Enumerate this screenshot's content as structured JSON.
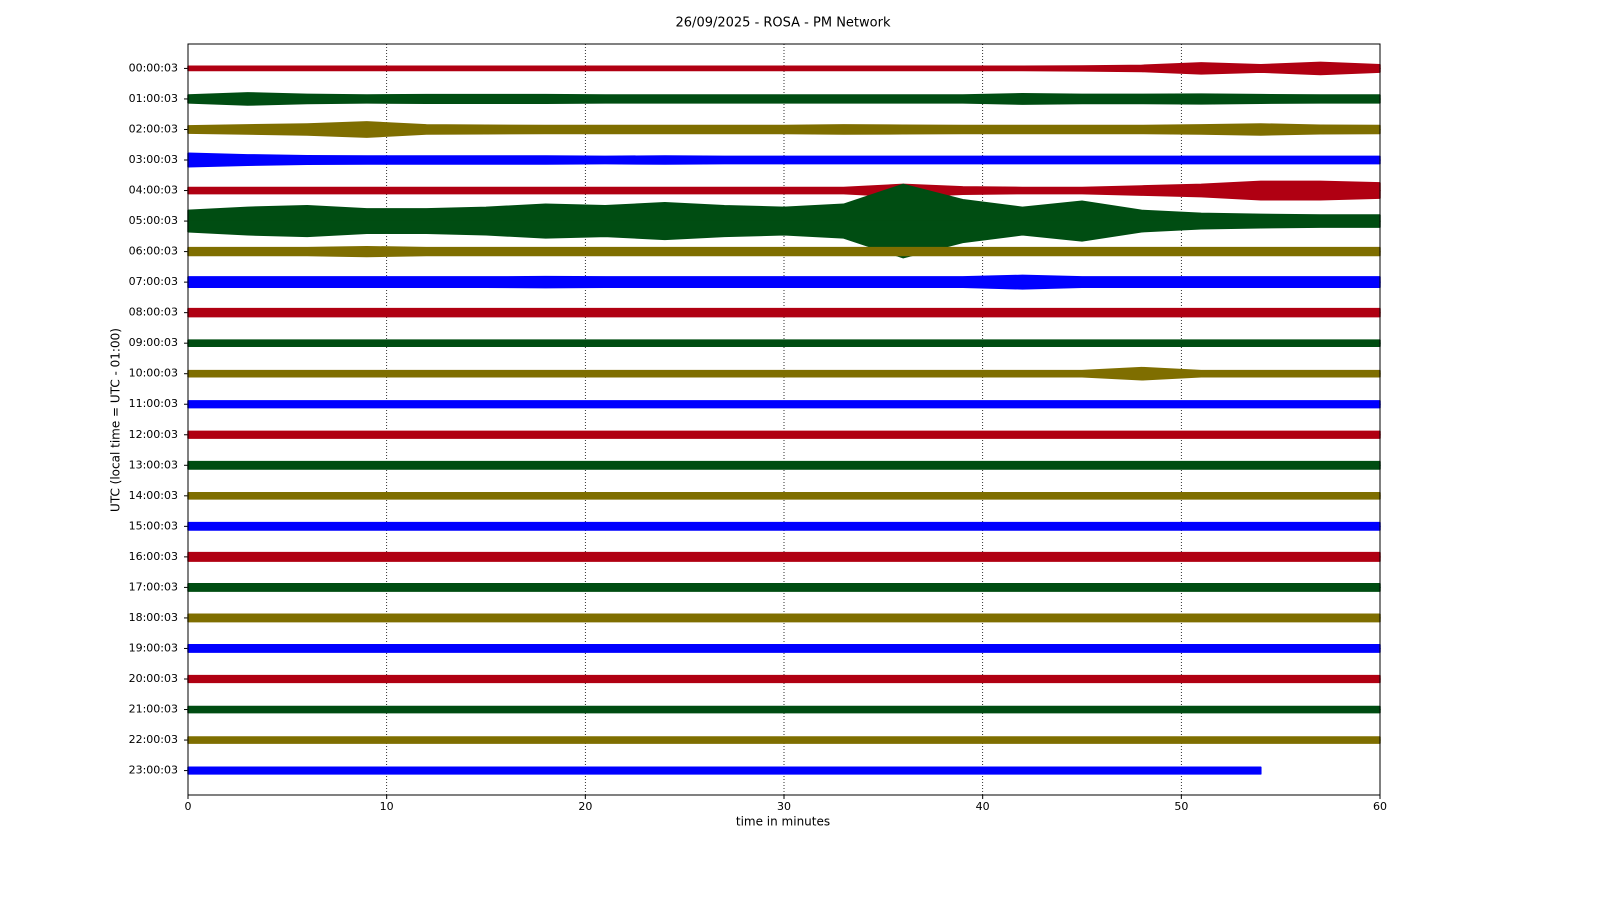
{
  "chart_data": {
    "type": "helicorder",
    "title": "26/09/2025 - ROSA - PM Network",
    "xlabel": "time in minutes",
    "ylabel": "UTC (local time = UTC - 01:00)",
    "xlim": [
      0,
      60
    ],
    "xticks": [
      0,
      10,
      20,
      30,
      40,
      50,
      60
    ],
    "grid": true,
    "categories": [
      "00:00:03",
      "01:00:03",
      "02:00:03",
      "03:00:03",
      "04:00:03",
      "05:00:03",
      "06:00:03",
      "07:00:03",
      "08:00:03",
      "09:00:03",
      "10:00:03",
      "11:00:03",
      "12:00:03",
      "13:00:03",
      "14:00:03",
      "15:00:03",
      "16:00:03",
      "17:00:03",
      "18:00:03",
      "19:00:03",
      "20:00:03",
      "21:00:03",
      "22:00:03",
      "23:00:03"
    ],
    "x": [
      0,
      3,
      6,
      9,
      12,
      15,
      18,
      21,
      24,
      27,
      30,
      33,
      36,
      39,
      42,
      45,
      48,
      51,
      54,
      57,
      60
    ],
    "series": [
      {
        "color": "#b00012",
        "values": [
          0.07,
          0.07,
          0.07,
          0.07,
          0.07,
          0.07,
          0.07,
          0.07,
          0.07,
          0.07,
          0.07,
          0.07,
          0.07,
          0.07,
          0.07,
          0.08,
          0.1,
          0.18,
          0.12,
          0.2,
          0.12
        ]
      },
      {
        "color": "#004d12",
        "values": [
          0.13,
          0.2,
          0.15,
          0.13,
          0.14,
          0.14,
          0.14,
          0.13,
          0.13,
          0.13,
          0.13,
          0.13,
          0.13,
          0.13,
          0.17,
          0.15,
          0.15,
          0.16,
          0.14,
          0.13,
          0.13
        ]
      },
      {
        "color": "#7f6e00",
        "values": [
          0.12,
          0.15,
          0.18,
          0.25,
          0.15,
          0.14,
          0.13,
          0.13,
          0.13,
          0.13,
          0.13,
          0.15,
          0.14,
          0.13,
          0.13,
          0.13,
          0.13,
          0.15,
          0.18,
          0.14,
          0.13
        ]
      },
      {
        "color": "#0000ff",
        "values": [
          0.22,
          0.17,
          0.14,
          0.13,
          0.13,
          0.13,
          0.13,
          0.12,
          0.13,
          0.12,
          0.12,
          0.12,
          0.12,
          0.12,
          0.12,
          0.12,
          0.12,
          0.12,
          0.12,
          0.12,
          0.12
        ]
      },
      {
        "color": "#b00012",
        "values": [
          0.1,
          0.1,
          0.1,
          0.1,
          0.1,
          0.1,
          0.1,
          0.1,
          0.1,
          0.1,
          0.1,
          0.1,
          0.2,
          0.12,
          0.1,
          0.1,
          0.15,
          0.2,
          0.3,
          0.3,
          0.25
        ]
      },
      {
        "color": "#004d12",
        "values": [
          0.35,
          0.45,
          0.5,
          0.4,
          0.4,
          0.45,
          0.55,
          0.5,
          0.6,
          0.5,
          0.45,
          0.55,
          1.2,
          0.7,
          0.45,
          0.65,
          0.35,
          0.25,
          0.22,
          0.2,
          0.2
        ]
      },
      {
        "color": "#7f6e00",
        "values": [
          0.13,
          0.13,
          0.13,
          0.16,
          0.13,
          0.13,
          0.13,
          0.13,
          0.13,
          0.13,
          0.13,
          0.13,
          0.13,
          0.13,
          0.13,
          0.13,
          0.13,
          0.13,
          0.13,
          0.13,
          0.13
        ]
      },
      {
        "color": "#0000ff",
        "values": [
          0.17,
          0.17,
          0.17,
          0.17,
          0.17,
          0.17,
          0.18,
          0.17,
          0.17,
          0.17,
          0.17,
          0.17,
          0.17,
          0.17,
          0.22,
          0.17,
          0.17,
          0.17,
          0.17,
          0.17,
          0.17
        ]
      },
      {
        "color": "#b00012",
        "values": [
          0.13,
          0.13,
          0.13,
          0.13,
          0.13,
          0.13,
          0.13,
          0.13,
          0.13,
          0.13,
          0.13,
          0.13,
          0.13,
          0.13,
          0.13,
          0.13,
          0.13,
          0.13,
          0.13,
          0.13,
          0.13
        ]
      },
      {
        "color": "#004d12",
        "values": [
          0.1,
          0.1,
          0.1,
          0.1,
          0.1,
          0.1,
          0.1,
          0.1,
          0.1,
          0.1,
          0.1,
          0.1,
          0.1,
          0.1,
          0.1,
          0.1,
          0.1,
          0.1,
          0.1,
          0.1,
          0.1
        ]
      },
      {
        "color": "#7f6e00",
        "values": [
          0.1,
          0.1,
          0.1,
          0.1,
          0.1,
          0.1,
          0.1,
          0.1,
          0.1,
          0.1,
          0.1,
          0.1,
          0.1,
          0.1,
          0.1,
          0.1,
          0.2,
          0.1,
          0.1,
          0.1,
          0.1
        ]
      },
      {
        "color": "#0000ff",
        "values": [
          0.11,
          0.11,
          0.11,
          0.11,
          0.11,
          0.11,
          0.11,
          0.11,
          0.11,
          0.11,
          0.11,
          0.11,
          0.11,
          0.11,
          0.11,
          0.11,
          0.11,
          0.11,
          0.11,
          0.11,
          0.11
        ]
      },
      {
        "color": "#b00012",
        "values": [
          0.11,
          0.11,
          0.11,
          0.11,
          0.11,
          0.11,
          0.11,
          0.11,
          0.11,
          0.11,
          0.11,
          0.11,
          0.11,
          0.11,
          0.11,
          0.11,
          0.11,
          0.11,
          0.11,
          0.11,
          0.11
        ]
      },
      {
        "color": "#004d12",
        "values": [
          0.12,
          0.12,
          0.12,
          0.12,
          0.12,
          0.12,
          0.12,
          0.12,
          0.12,
          0.12,
          0.12,
          0.12,
          0.12,
          0.12,
          0.12,
          0.12,
          0.12,
          0.12,
          0.12,
          0.12,
          0.12
        ]
      },
      {
        "color": "#7f6e00",
        "values": [
          0.1,
          0.1,
          0.1,
          0.1,
          0.1,
          0.1,
          0.1,
          0.1,
          0.1,
          0.1,
          0.1,
          0.1,
          0.1,
          0.1,
          0.1,
          0.1,
          0.1,
          0.1,
          0.1,
          0.1,
          0.1
        ]
      },
      {
        "color": "#0000ff",
        "values": [
          0.12,
          0.12,
          0.12,
          0.12,
          0.12,
          0.12,
          0.12,
          0.12,
          0.12,
          0.12,
          0.12,
          0.12,
          0.12,
          0.12,
          0.12,
          0.12,
          0.12,
          0.12,
          0.12,
          0.12,
          0.12
        ]
      },
      {
        "color": "#b00012",
        "values": [
          0.14,
          0.14,
          0.14,
          0.14,
          0.14,
          0.14,
          0.14,
          0.14,
          0.14,
          0.14,
          0.14,
          0.14,
          0.14,
          0.14,
          0.14,
          0.14,
          0.14,
          0.14,
          0.14,
          0.14,
          0.14
        ]
      },
      {
        "color": "#004d12",
        "values": [
          0.12,
          0.12,
          0.12,
          0.12,
          0.12,
          0.12,
          0.12,
          0.12,
          0.12,
          0.12,
          0.12,
          0.12,
          0.12,
          0.12,
          0.12,
          0.12,
          0.12,
          0.12,
          0.12,
          0.12,
          0.12
        ]
      },
      {
        "color": "#7f6e00",
        "values": [
          0.12,
          0.12,
          0.12,
          0.12,
          0.12,
          0.12,
          0.12,
          0.12,
          0.12,
          0.12,
          0.12,
          0.12,
          0.12,
          0.12,
          0.12,
          0.12,
          0.12,
          0.12,
          0.12,
          0.12,
          0.12
        ]
      },
      {
        "color": "#0000ff",
        "values": [
          0.12,
          0.12,
          0.12,
          0.12,
          0.12,
          0.12,
          0.12,
          0.12,
          0.12,
          0.12,
          0.12,
          0.12,
          0.12,
          0.12,
          0.12,
          0.12,
          0.12,
          0.12,
          0.12,
          0.12,
          0.12
        ]
      },
      {
        "color": "#b00012",
        "values": [
          0.11,
          0.11,
          0.11,
          0.11,
          0.11,
          0.11,
          0.11,
          0.11,
          0.11,
          0.11,
          0.11,
          0.11,
          0.11,
          0.11,
          0.11,
          0.11,
          0.11,
          0.11,
          0.11,
          0.11,
          0.11
        ]
      },
      {
        "color": "#004d12",
        "values": [
          0.1,
          0.1,
          0.1,
          0.1,
          0.1,
          0.1,
          0.1,
          0.1,
          0.1,
          0.1,
          0.1,
          0.1,
          0.1,
          0.1,
          0.1,
          0.1,
          0.1,
          0.1,
          0.1,
          0.1,
          0.1
        ]
      },
      {
        "color": "#7f6e00",
        "values": [
          0.1,
          0.1,
          0.1,
          0.1,
          0.1,
          0.1,
          0.1,
          0.1,
          0.1,
          0.1,
          0.1,
          0.1,
          0.1,
          0.1,
          0.1,
          0.1,
          0.1,
          0.1,
          0.1,
          0.1,
          0.1
        ]
      },
      {
        "color": "#0000ff",
        "values": [
          0.11,
          0.11,
          0.11,
          0.11,
          0.11,
          0.11,
          0.11,
          0.11,
          0.11,
          0.11,
          0.11,
          0.11,
          0.11,
          0.11,
          0.11,
          0.11,
          0.11,
          0.11,
          0.11,
          null,
          null
        ]
      }
    ]
  }
}
